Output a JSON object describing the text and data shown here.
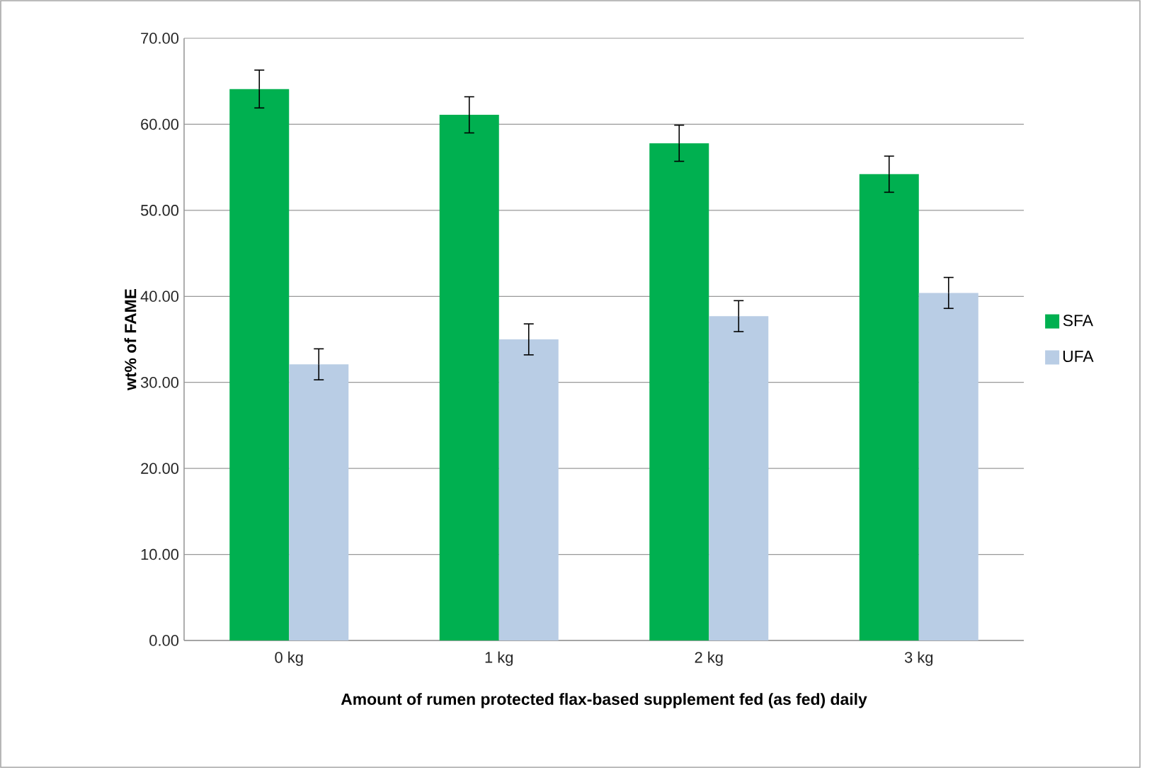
{
  "chart_data": {
    "type": "bar",
    "xlabel": "Amount of rumen protected flax-based supplement fed (as fed) daily",
    "ylabel": "wt% of FAME",
    "categories": [
      "0 kg",
      "1 kg",
      "2 kg",
      "3 kg"
    ],
    "series": [
      {
        "name": "SFA",
        "color": "#00b050",
        "values": [
          64.1,
          61.1,
          57.8,
          54.2
        ],
        "errors": [
          2.2,
          2.1,
          2.1,
          2.1
        ]
      },
      {
        "name": "UFA",
        "color": "#b9cde5",
        "values": [
          32.1,
          35.0,
          37.7,
          40.4
        ],
        "errors": [
          1.8,
          1.8,
          1.8,
          1.8
        ]
      }
    ],
    "ylim": [
      0,
      70
    ],
    "yticks": [
      {
        "value": 0,
        "label": "0.00"
      },
      {
        "value": 10,
        "label": "10.00"
      },
      {
        "value": 20,
        "label": "20.00"
      },
      {
        "value": 30,
        "label": "30.00"
      },
      {
        "value": 40,
        "label": "40.00"
      },
      {
        "value": 50,
        "label": "50.00"
      },
      {
        "value": 60,
        "label": "60.00"
      },
      {
        "value": 70,
        "label": "70.00"
      }
    ],
    "grid": "y",
    "legend": "right"
  }
}
